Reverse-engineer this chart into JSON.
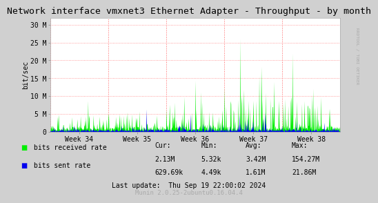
{
  "title": "Network interface vmxnet3 Ethernet Adapter - Throughput - by month",
  "ylabel": "bit/sec",
  "right_label": "RRDTOOL / TOBI OETIKER",
  "x_tick_labels": [
    "Week 34",
    "Week 35",
    "Week 36",
    "Week 37",
    "Week 38"
  ],
  "y_ticks": [
    0,
    5000000,
    10000000,
    15000000,
    20000000,
    25000000,
    30000000
  ],
  "y_tick_labels": [
    "0",
    "5 M",
    "10 M",
    "15 M",
    "20 M",
    "25 M",
    "30 M"
  ],
  "ylim": [
    0,
    32000000
  ],
  "bg_color": "#d0d0d0",
  "plot_bg_color": "#ffffff",
  "grid_color": "#ff8080",
  "green_color": "#00ee00",
  "blue_color": "#0000ee",
  "vline_color": "#ff6060",
  "legend_green": "bits received rate",
  "legend_blue": "bits sent rate",
  "stats_header": [
    "Cur:",
    "Min:",
    "Avg:",
    "Max:"
  ],
  "stats_green": [
    "2.13M",
    "5.32k",
    "3.42M",
    "154.27M"
  ],
  "stats_blue": [
    "629.69k",
    "4.49k",
    "1.61M",
    "21.86M"
  ],
  "last_update": "Last update:  Thu Sep 19 22:00:02 2024",
  "munin_version": "Munin 2.0.25-2ubuntu0.16.04.4",
  "title_fontsize": 9.5,
  "axis_fontsize": 7,
  "legend_fontsize": 7.5,
  "stats_fontsize": 7
}
